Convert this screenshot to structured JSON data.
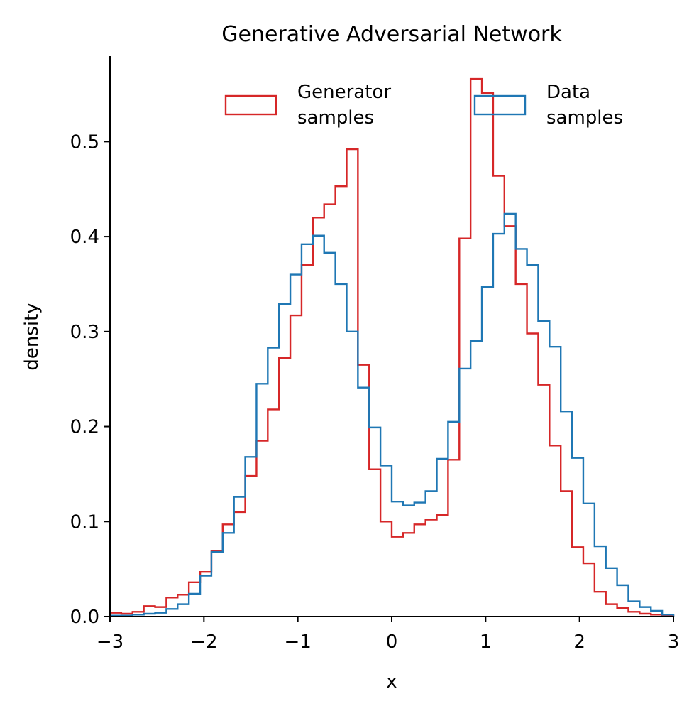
{
  "chart_data": {
    "type": "step-histogram",
    "title": "Generative Adversarial Network",
    "xlabel": "x",
    "ylabel": "density",
    "xlim": [
      -3,
      3
    ],
    "ylim": [
      0,
      0.59
    ],
    "xticks": [
      -3,
      -2,
      -1,
      0,
      1,
      2,
      3
    ],
    "xtick_labels": [
      "−3",
      "−2",
      "−1",
      "0",
      "1",
      "2",
      "3"
    ],
    "yticks": [
      0.0,
      0.1,
      0.2,
      0.3,
      0.4,
      0.5
    ],
    "ytick_labels": [
      "0.0",
      "0.1",
      "0.2",
      "0.3",
      "0.4",
      "0.5"
    ],
    "grid": false,
    "legend_position": "top",
    "bin_edges": [
      -3.0,
      -2.88,
      -2.76,
      -2.64,
      -2.52,
      -2.4,
      -2.28,
      -2.16,
      -2.04,
      -1.92,
      -1.8,
      -1.68,
      -1.56,
      -1.44,
      -1.32,
      -1.2,
      -1.08,
      -0.96,
      -0.84,
      -0.72,
      -0.6,
      -0.48,
      -0.36,
      -0.24,
      -0.12,
      0.0,
      0.12,
      0.24,
      0.36,
      0.48,
      0.6,
      0.72,
      0.84,
      0.96,
      1.08,
      1.2,
      1.32,
      1.44,
      1.56,
      1.68,
      1.8,
      1.92,
      2.04,
      2.16,
      2.28,
      2.4,
      2.52,
      2.64,
      2.76,
      2.88,
      3.0
    ],
    "series": [
      {
        "name": "Generator\nsamples",
        "color": "#d62728",
        "values": [
          0.004,
          0.003,
          0.005,
          0.011,
          0.01,
          0.02,
          0.023,
          0.036,
          0.047,
          0.069,
          0.097,
          0.11,
          0.148,
          0.185,
          0.218,
          0.272,
          0.317,
          0.37,
          0.42,
          0.434,
          0.453,
          0.492,
          0.265,
          0.155,
          0.1,
          0.084,
          0.088,
          0.097,
          0.102,
          0.107,
          0.165,
          0.398,
          0.566,
          0.551,
          0.464,
          0.411,
          0.35,
          0.298,
          0.244,
          0.18,
          0.132,
          0.073,
          0.056,
          0.026,
          0.013,
          0.009,
          0.005,
          0.003,
          0.002,
          0.001
        ]
      },
      {
        "name": "Data\nsamples",
        "color": "#1f77b4",
        "values": [
          0.001,
          0.001,
          0.002,
          0.003,
          0.004,
          0.008,
          0.013,
          0.024,
          0.043,
          0.068,
          0.088,
          0.126,
          0.168,
          0.245,
          0.283,
          0.329,
          0.36,
          0.392,
          0.401,
          0.383,
          0.35,
          0.3,
          0.241,
          0.199,
          0.159,
          0.121,
          0.117,
          0.12,
          0.132,
          0.166,
          0.205,
          0.261,
          0.29,
          0.347,
          0.403,
          0.424,
          0.387,
          0.37,
          0.311,
          0.284,
          0.216,
          0.167,
          0.119,
          0.074,
          0.051,
          0.033,
          0.016,
          0.01,
          0.006,
          0.002
        ]
      }
    ]
  }
}
